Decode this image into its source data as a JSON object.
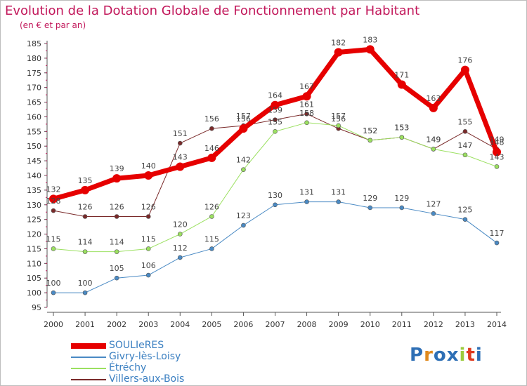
{
  "header": {
    "title": "Evolution de la Dotation Globale de Fonctionnement par Habitant",
    "subtitle": "(en € et par an)"
  },
  "colors": {
    "title": "#c2185b",
    "legend_text": "#3a7fc1",
    "axis": "#555555",
    "grid": "#dddddd"
  },
  "logo": {
    "text": "Proxiti",
    "colors": [
      "#2e6fb5",
      "#e08a1e",
      "#2e6fb5",
      "#2e6fb5",
      "#9ccc3d",
      "#e03a1e",
      "#2e6fb5"
    ]
  },
  "chart_data": {
    "type": "line",
    "title": "Evolution de la Dotation Globale de Fonctionnement par Habitant",
    "subtitle": "(en € et par an)",
    "x": [
      "2000",
      "2001",
      "2002",
      "2003",
      "2004",
      "2005",
      "2006",
      "2007",
      "2008",
      "2009",
      "2010",
      "2011",
      "2012",
      "2013",
      "2014"
    ],
    "ylim": [
      95,
      185
    ],
    "yticks": [
      95,
      100,
      105,
      110,
      115,
      120,
      125,
      130,
      135,
      140,
      145,
      150,
      155,
      160,
      165,
      170,
      175,
      180,
      185
    ],
    "grid": false,
    "legend_position": "bottom-left",
    "series": [
      {
        "name": "SOULIeRES",
        "color": "#e60000",
        "width": 7,
        "marker_r": 6,
        "values": [
          132,
          135,
          139,
          140,
          143,
          146,
          156,
          164,
          167,
          182,
          183,
          171,
          163,
          176,
          148
        ],
        "labels": [
          "132",
          "135",
          "139",
          "140",
          "143",
          "146",
          "156",
          "164",
          "167",
          "182",
          "183",
          "171",
          "163",
          "176",
          "148"
        ]
      },
      {
        "name": "Givry-lès-Loisy",
        "color": "#4a8ac4",
        "width": 1,
        "marker_r": 3,
        "values": [
          100,
          100,
          105,
          106,
          112,
          115,
          123,
          130,
          131,
          131,
          129,
          129,
          127,
          125,
          117
        ],
        "labels": [
          "100",
          "100",
          "105",
          "106",
          "112",
          "115",
          "123",
          "130",
          "131",
          "131",
          "129",
          "129",
          "127",
          "125",
          "117"
        ]
      },
      {
        "name": "Étréchy",
        "color": "#9be060",
        "width": 1,
        "marker_r": 3,
        "values": [
          115,
          114,
          114,
          115,
          120,
          126,
          142,
          155,
          158,
          157,
          152,
          153,
          149,
          147,
          143
        ],
        "labels": [
          "115",
          "114",
          "114",
          "115",
          "120",
          "126",
          "142",
          "155",
          "158",
          "157",
          "152",
          "153",
          "149",
          "147",
          "143"
        ]
      },
      {
        "name": "Villers-aux-Bois",
        "color": "#7a2a2a",
        "width": 1,
        "marker_r": 3,
        "values": [
          128,
          126,
          126,
          126,
          151,
          156,
          157,
          159,
          161,
          156,
          152,
          153,
          149,
          155,
          149
        ],
        "labels": [
          "128",
          "126",
          "126",
          "126",
          "151",
          "156",
          "157",
          "159",
          "161",
          "156",
          "152",
          "153",
          "149",
          "155",
          "149"
        ]
      }
    ]
  }
}
